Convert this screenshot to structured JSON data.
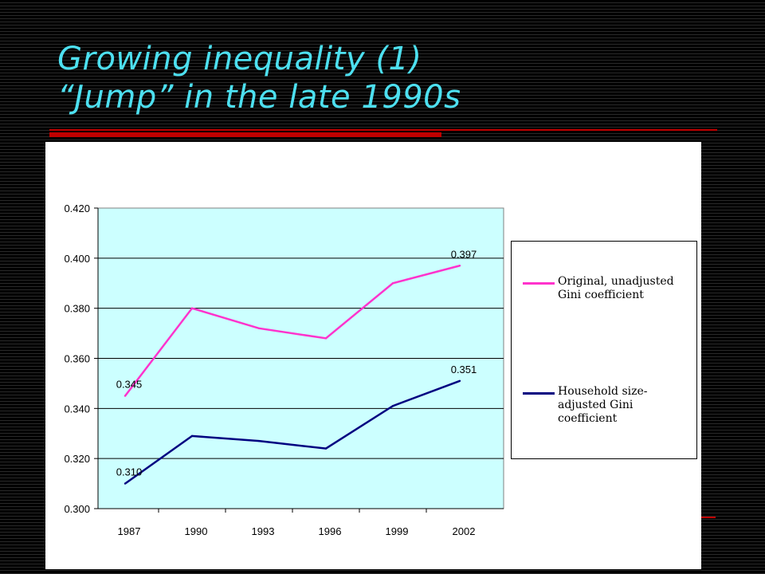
{
  "slide": {
    "title_line1": "Growing inequality (1)",
    "title_line2": "“Jump” in the late 1990s"
  },
  "colors": {
    "original": "#ff33cc",
    "adjusted": "#000080",
    "plot_bg": "#ccffff",
    "accent": "#c00000",
    "title": "#4de0f0"
  },
  "chart_data": {
    "type": "line",
    "title": "",
    "xlabel": "",
    "ylabel": "",
    "x": [
      "1987",
      "1990",
      "1993",
      "1996",
      "1999",
      "2002"
    ],
    "ylim": [
      0.3,
      0.42
    ],
    "yticks": [
      "0.300",
      "0.320",
      "0.340",
      "0.360",
      "0.380",
      "0.400",
      "0.420"
    ],
    "grid": "horizontal",
    "legend_position": "right",
    "series": [
      {
        "name": "Original, unadjusted Gini coefficient",
        "legend_lines": [
          "Original, unadjusted",
          "Gini coefficient"
        ],
        "color": "#ff33cc",
        "values": [
          0.345,
          0.38,
          0.372,
          0.368,
          0.39,
          0.397
        ],
        "labels": {
          "0": "0.345",
          "5": "0.397"
        }
      },
      {
        "name": "Household size-adjusted Gini coefficient",
        "legend_lines": [
          "Household size-",
          "adjusted Gini",
          "coefficient"
        ],
        "color": "#000080",
        "values": [
          0.31,
          0.329,
          0.327,
          0.324,
          0.341,
          0.351
        ],
        "labels": {
          "0": "0.310",
          "5": "0.351"
        }
      }
    ]
  }
}
